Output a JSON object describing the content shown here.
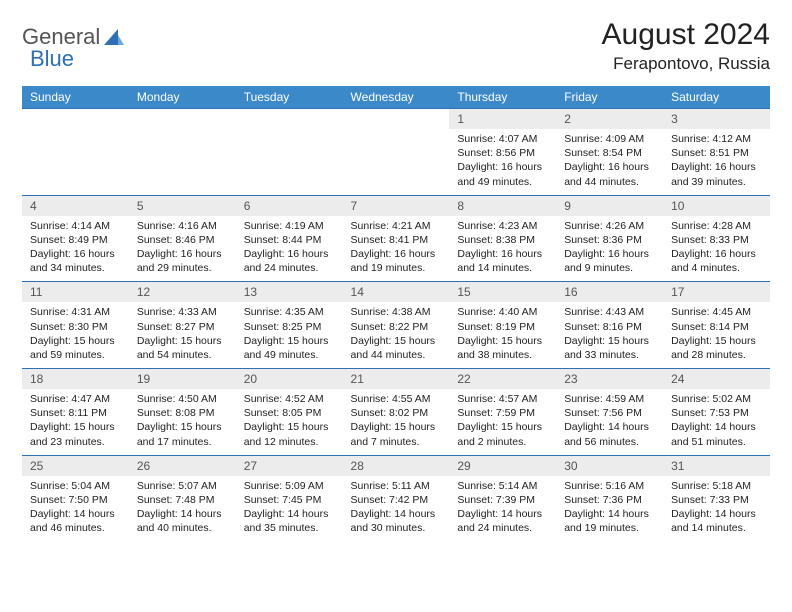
{
  "logo": {
    "word1": "General",
    "word2": "Blue"
  },
  "title": "August 2024",
  "location": "Ferapontovo, Russia",
  "colors": {
    "header_bg": "#3b89c9",
    "header_text": "#ffffff",
    "daynum_bg": "#ececec",
    "border": "#2f6fb3",
    "logo_gray": "#555555",
    "logo_blue": "#2f6fb3",
    "text": "#000000"
  },
  "day_headers": [
    "Sunday",
    "Monday",
    "Tuesday",
    "Wednesday",
    "Thursday",
    "Friday",
    "Saturday"
  ],
  "weeks": [
    {
      "nums": [
        "",
        "",
        "",
        "",
        "1",
        "2",
        "3"
      ],
      "details": [
        "",
        "",
        "",
        "",
        "Sunrise: 4:07 AM\nSunset: 8:56 PM\nDaylight: 16 hours and 49 minutes.",
        "Sunrise: 4:09 AM\nSunset: 8:54 PM\nDaylight: 16 hours and 44 minutes.",
        "Sunrise: 4:12 AM\nSunset: 8:51 PM\nDaylight: 16 hours and 39 minutes."
      ]
    },
    {
      "nums": [
        "4",
        "5",
        "6",
        "7",
        "8",
        "9",
        "10"
      ],
      "details": [
        "Sunrise: 4:14 AM\nSunset: 8:49 PM\nDaylight: 16 hours and 34 minutes.",
        "Sunrise: 4:16 AM\nSunset: 8:46 PM\nDaylight: 16 hours and 29 minutes.",
        "Sunrise: 4:19 AM\nSunset: 8:44 PM\nDaylight: 16 hours and 24 minutes.",
        "Sunrise: 4:21 AM\nSunset: 8:41 PM\nDaylight: 16 hours and 19 minutes.",
        "Sunrise: 4:23 AM\nSunset: 8:38 PM\nDaylight: 16 hours and 14 minutes.",
        "Sunrise: 4:26 AM\nSunset: 8:36 PM\nDaylight: 16 hours and 9 minutes.",
        "Sunrise: 4:28 AM\nSunset: 8:33 PM\nDaylight: 16 hours and 4 minutes."
      ]
    },
    {
      "nums": [
        "11",
        "12",
        "13",
        "14",
        "15",
        "16",
        "17"
      ],
      "details": [
        "Sunrise: 4:31 AM\nSunset: 8:30 PM\nDaylight: 15 hours and 59 minutes.",
        "Sunrise: 4:33 AM\nSunset: 8:27 PM\nDaylight: 15 hours and 54 minutes.",
        "Sunrise: 4:35 AM\nSunset: 8:25 PM\nDaylight: 15 hours and 49 minutes.",
        "Sunrise: 4:38 AM\nSunset: 8:22 PM\nDaylight: 15 hours and 44 minutes.",
        "Sunrise: 4:40 AM\nSunset: 8:19 PM\nDaylight: 15 hours and 38 minutes.",
        "Sunrise: 4:43 AM\nSunset: 8:16 PM\nDaylight: 15 hours and 33 minutes.",
        "Sunrise: 4:45 AM\nSunset: 8:14 PM\nDaylight: 15 hours and 28 minutes."
      ]
    },
    {
      "nums": [
        "18",
        "19",
        "20",
        "21",
        "22",
        "23",
        "24"
      ],
      "details": [
        "Sunrise: 4:47 AM\nSunset: 8:11 PM\nDaylight: 15 hours and 23 minutes.",
        "Sunrise: 4:50 AM\nSunset: 8:08 PM\nDaylight: 15 hours and 17 minutes.",
        "Sunrise: 4:52 AM\nSunset: 8:05 PM\nDaylight: 15 hours and 12 minutes.",
        "Sunrise: 4:55 AM\nSunset: 8:02 PM\nDaylight: 15 hours and 7 minutes.",
        "Sunrise: 4:57 AM\nSunset: 7:59 PM\nDaylight: 15 hours and 2 minutes.",
        "Sunrise: 4:59 AM\nSunset: 7:56 PM\nDaylight: 14 hours and 56 minutes.",
        "Sunrise: 5:02 AM\nSunset: 7:53 PM\nDaylight: 14 hours and 51 minutes."
      ]
    },
    {
      "nums": [
        "25",
        "26",
        "27",
        "28",
        "29",
        "30",
        "31"
      ],
      "details": [
        "Sunrise: 5:04 AM\nSunset: 7:50 PM\nDaylight: 14 hours and 46 minutes.",
        "Sunrise: 5:07 AM\nSunset: 7:48 PM\nDaylight: 14 hours and 40 minutes.",
        "Sunrise: 5:09 AM\nSunset: 7:45 PM\nDaylight: 14 hours and 35 minutes.",
        "Sunrise: 5:11 AM\nSunset: 7:42 PM\nDaylight: 14 hours and 30 minutes.",
        "Sunrise: 5:14 AM\nSunset: 7:39 PM\nDaylight: 14 hours and 24 minutes.",
        "Sunrise: 5:16 AM\nSunset: 7:36 PM\nDaylight: 14 hours and 19 minutes.",
        "Sunrise: 5:18 AM\nSunset: 7:33 PM\nDaylight: 14 hours and 14 minutes."
      ]
    }
  ]
}
